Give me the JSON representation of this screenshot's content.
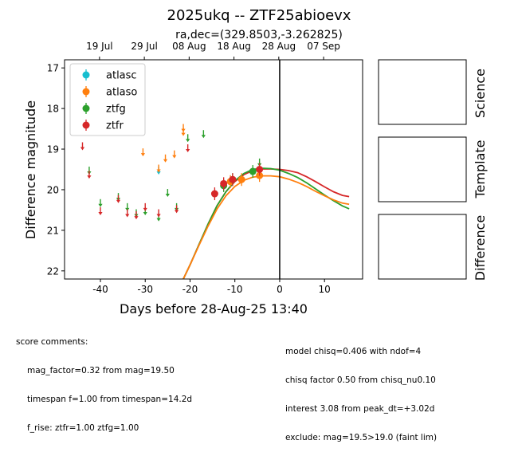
{
  "chart_data": {
    "type": "scatter",
    "title": "2025ukq -- ZTF25abioevx",
    "subtitle": "ra,dec=(329.8503,-3.262825)",
    "xlabel": "Days before 28-Aug-25 13:40",
    "ylabel": "Difference magnitude",
    "xlim": [
      -48,
      18.5
    ],
    "ylim": [
      22.2,
      16.8
    ],
    "y_inverted": true,
    "xticks": [
      -40,
      -30,
      -20,
      -10,
      0,
      10
    ],
    "yticks": [
      17,
      18,
      19,
      20,
      21,
      22
    ],
    "top_axis": {
      "ticks": [
        {
          "x": -40.2,
          "label": "19 Jul"
        },
        {
          "x": -30.2,
          "label": "29 Jul"
        },
        {
          "x": -20.2,
          "label": "08 Aug"
        },
        {
          "x": -10.2,
          "label": "18 Aug"
        },
        {
          "x": -0.2,
          "label": "28 Aug"
        },
        {
          "x": 9.8,
          "label": "07 Sep"
        }
      ]
    },
    "vline_x": 0,
    "legend": {
      "position": "top-left",
      "entries": [
        "atlasc",
        "atlaso",
        "ztfg",
        "ztfr"
      ]
    },
    "colors": {
      "atlasc": "#17becf",
      "atlaso": "#ff7f0e",
      "ztfg": "#2ca02c",
      "ztfr": "#d62728"
    },
    "series": [
      {
        "name": "atlasc",
        "detections": [],
        "upper_limits": [
          [
            -27.0,
            19.55
          ]
        ]
      },
      {
        "name": "atlaso",
        "detections": [
          [
            -4.5,
            19.65
          ],
          [
            -8.5,
            19.75
          ],
          [
            -11.0,
            19.8
          ]
        ],
        "upper_limits": [
          [
            -30.5,
            19.1
          ],
          [
            -27.0,
            19.5
          ],
          [
            -25.5,
            19.25
          ],
          [
            -23.5,
            19.15
          ],
          [
            -21.5,
            18.5
          ],
          [
            -21.5,
            18.6
          ]
        ]
      },
      {
        "name": "ztfg",
        "detections": [
          [
            -6.0,
            19.55
          ],
          [
            -10.5,
            19.75
          ],
          [
            -12.5,
            19.9
          ]
        ],
        "upper_limits": [
          [
            -42.5,
            19.55
          ],
          [
            -40.0,
            20.35
          ],
          [
            -36.0,
            20.2
          ],
          [
            -34.0,
            20.45
          ],
          [
            -32.0,
            20.6
          ],
          [
            -30.0,
            20.55
          ],
          [
            -27.0,
            20.7
          ],
          [
            -25.0,
            20.1
          ],
          [
            -23.0,
            20.45
          ],
          [
            -20.5,
            18.75
          ],
          [
            -17.0,
            18.65
          ],
          [
            -4.5,
            19.35
          ]
        ]
      },
      {
        "name": "ztfr",
        "detections": [
          [
            -4.5,
            19.5
          ],
          [
            -10.5,
            19.75
          ],
          [
            -12.5,
            19.85
          ],
          [
            -14.5,
            20.1
          ]
        ],
        "upper_limits": [
          [
            -44.0,
            18.95
          ],
          [
            -42.5,
            19.65
          ],
          [
            -40.0,
            20.55
          ],
          [
            -36.0,
            20.25
          ],
          [
            -34.0,
            20.6
          ],
          [
            -32.0,
            20.65
          ],
          [
            -30.0,
            20.45
          ],
          [
            -27.0,
            20.6
          ],
          [
            -23.0,
            20.5
          ],
          [
            -20.5,
            19.0
          ]
        ]
      }
    ],
    "model_curves": [
      {
        "band": "ztfr",
        "x": [
          -21.5,
          -20,
          -18,
          -16,
          -14,
          -12,
          -10,
          -8,
          -6,
          -4,
          -2,
          0,
          2,
          4,
          6,
          8,
          10,
          12,
          14,
          15.5
        ],
        "y": [
          22.2,
          21.85,
          21.35,
          20.85,
          20.4,
          20.05,
          19.8,
          19.63,
          19.53,
          19.49,
          19.49,
          19.5,
          19.53,
          19.58,
          19.68,
          19.8,
          19.93,
          20.05,
          20.14,
          20.17
        ]
      },
      {
        "band": "ztfg",
        "x": [
          -21.5,
          -20,
          -18,
          -16,
          -14,
          -12,
          -10,
          -8,
          -6,
          -4,
          -2,
          0,
          2,
          4,
          6,
          8,
          10,
          12,
          14,
          15.5
        ],
        "y": [
          22.2,
          21.85,
          21.35,
          20.85,
          20.4,
          20.05,
          19.78,
          19.6,
          19.5,
          19.47,
          19.48,
          19.52,
          19.6,
          19.7,
          19.83,
          19.98,
          20.13,
          20.27,
          20.4,
          20.47
        ]
      },
      {
        "band": "atlaso",
        "x": [
          -21.5,
          -20,
          -18,
          -16,
          -14,
          -12,
          -10,
          -8,
          -6,
          -4,
          -2,
          0,
          2,
          4,
          6,
          8,
          10,
          12,
          14,
          15.5
        ],
        "y": [
          22.2,
          21.85,
          21.37,
          20.9,
          20.48,
          20.15,
          19.92,
          19.77,
          19.69,
          19.66,
          19.66,
          19.68,
          19.74,
          19.82,
          19.92,
          20.04,
          20.15,
          20.25,
          20.33,
          20.36
        ]
      }
    ]
  },
  "panels": {
    "science": "Science",
    "template": "Template",
    "difference": "Difference"
  },
  "comments_left": {
    "header": "score comments:",
    "lines": [
      "mag_factor=0.32 from mag=19.50",
      "timespan f=1.00 from timespan=14.2d",
      "f_rise: ztfr=1.00 ztfg=1.00"
    ]
  },
  "comments_right": {
    "lines": [
      "model chisq=0.406 with ndof=4",
      "chisq factor 0.50 from chisq_nu0.10",
      "interest 3.08 from peak_dt=+3.02d",
      "exclude: mag=19.5>19.0 (faint lim)"
    ]
  }
}
